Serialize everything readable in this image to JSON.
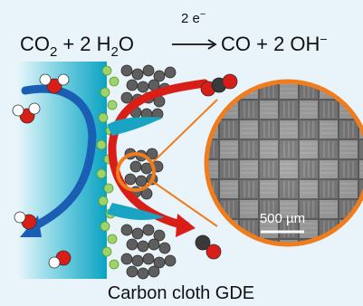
{
  "equation": {
    "lhs_co2": "CO",
    "lhs_co2_sub": "2",
    "plus_2": "+ 2 H",
    "h2o_sub": "2",
    "h2o_o": "O",
    "electrons": "2 e",
    "electrons_sup": "−",
    "rhs": "CO + 2 OH",
    "rhs_sup": "−"
  },
  "scale_bar_label": "500 µm",
  "caption": "Carbon cloth GDE",
  "colors": {
    "background": "#e9f3fa",
    "electrolyte_light": "#e6f6fb",
    "electrolyte_dark": "#1aa9c6",
    "cloth_gray": "#8a8a8a",
    "orange": "#ef7d1e",
    "blue_arrow": "#1a5fb4",
    "red_arrow": "#d91e18",
    "catalyst_green": "#7dc242"
  },
  "icons": [
    "h2o-molecule-icon",
    "co2-molecule-icon",
    "co-molecule-icon",
    "oh-molecule-icon"
  ]
}
